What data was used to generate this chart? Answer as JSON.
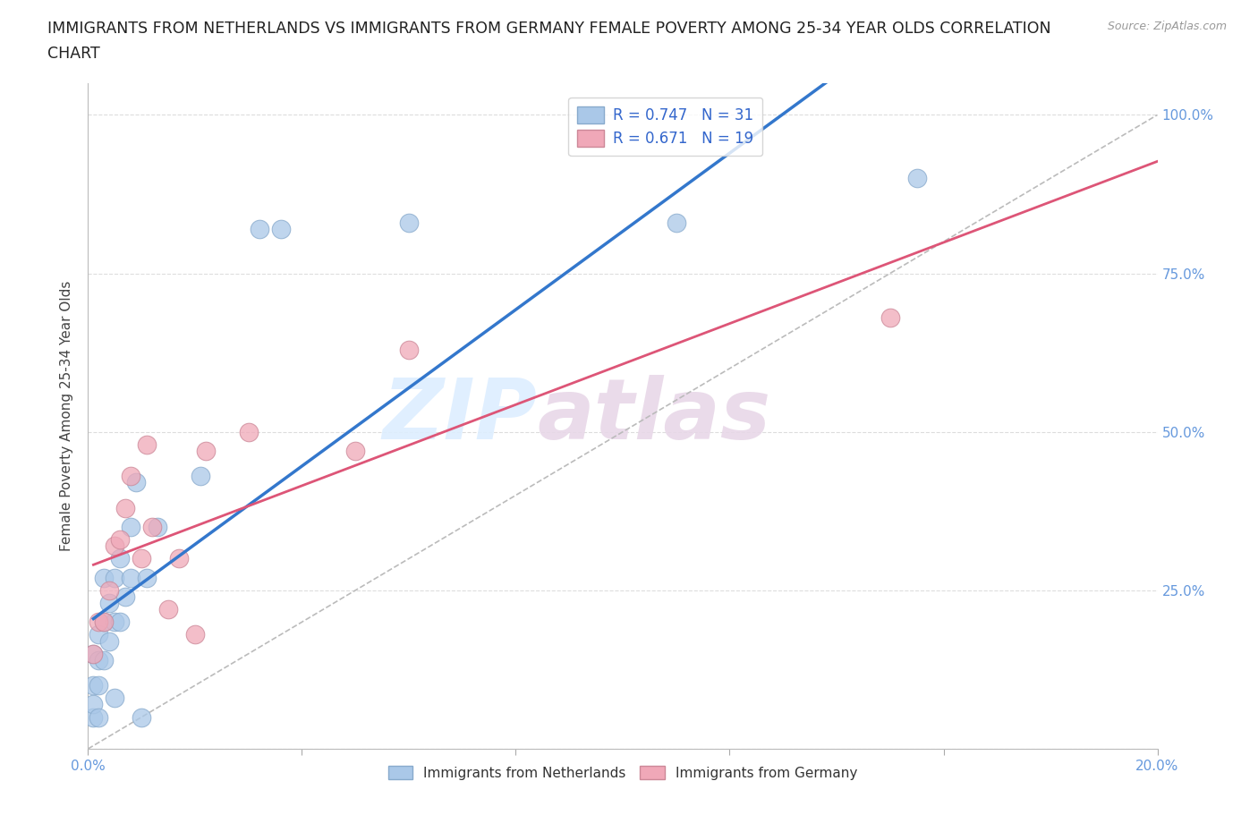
{
  "title_line1": "IMMIGRANTS FROM NETHERLANDS VS IMMIGRANTS FROM GERMANY FEMALE POVERTY AMONG 25-34 YEAR OLDS CORRELATION",
  "title_line2": "CHART",
  "source": "Source: ZipAtlas.com",
  "ylabel": "Female Poverty Among 25-34 Year Olds",
  "xlim": [
    0.0,
    0.2
  ],
  "ylim": [
    0.0,
    1.05
  ],
  "ytick_vals": [
    0.0,
    0.25,
    0.5,
    0.75,
    1.0
  ],
  "ytick_labels": [
    "",
    "25.0%",
    "50.0%",
    "75.0%",
    "100.0%"
  ],
  "xtick_vals": [
    0.0,
    0.04,
    0.08,
    0.12,
    0.16,
    0.2
  ],
  "xtick_labels": [
    "0.0%",
    "",
    "",
    "",
    "",
    "20.0%"
  ],
  "watermark_zip": "ZIP",
  "watermark_atlas": "atlas",
  "netherlands_R": 0.747,
  "netherlands_N": 31,
  "germany_R": 0.671,
  "germany_N": 19,
  "netherlands_color": "#aac8e8",
  "germany_color": "#f0a8b8",
  "netherlands_edge": "#88aacc",
  "germany_edge": "#cc8898",
  "netherlands_line_color": "#3377cc",
  "germany_line_color": "#dd5577",
  "diagonal_color": "#bbbbbb",
  "tick_color": "#6699dd",
  "grid_color": "#dddddd",
  "background_color": "#ffffff",
  "netherlands_x": [
    0.001,
    0.001,
    0.001,
    0.001,
    0.002,
    0.002,
    0.002,
    0.002,
    0.003,
    0.003,
    0.003,
    0.004,
    0.004,
    0.005,
    0.005,
    0.005,
    0.006,
    0.006,
    0.007,
    0.008,
    0.008,
    0.009,
    0.01,
    0.011,
    0.013,
    0.021,
    0.032,
    0.036,
    0.06,
    0.11,
    0.155
  ],
  "netherlands_y": [
    0.05,
    0.07,
    0.1,
    0.15,
    0.05,
    0.1,
    0.14,
    0.18,
    0.14,
    0.2,
    0.27,
    0.17,
    0.23,
    0.08,
    0.2,
    0.27,
    0.2,
    0.3,
    0.24,
    0.27,
    0.35,
    0.42,
    0.05,
    0.27,
    0.35,
    0.43,
    0.82,
    0.82,
    0.83,
    0.83,
    0.9
  ],
  "germany_x": [
    0.001,
    0.002,
    0.003,
    0.004,
    0.005,
    0.006,
    0.007,
    0.008,
    0.01,
    0.011,
    0.012,
    0.015,
    0.017,
    0.02,
    0.022,
    0.03,
    0.05,
    0.06,
    0.15
  ],
  "germany_y": [
    0.15,
    0.2,
    0.2,
    0.25,
    0.32,
    0.33,
    0.38,
    0.43,
    0.3,
    0.48,
    0.35,
    0.22,
    0.3,
    0.18,
    0.47,
    0.5,
    0.47,
    0.63,
    0.68
  ],
  "legend_facecolor": "#ffffff",
  "legend_edgecolor": "#cccccc"
}
